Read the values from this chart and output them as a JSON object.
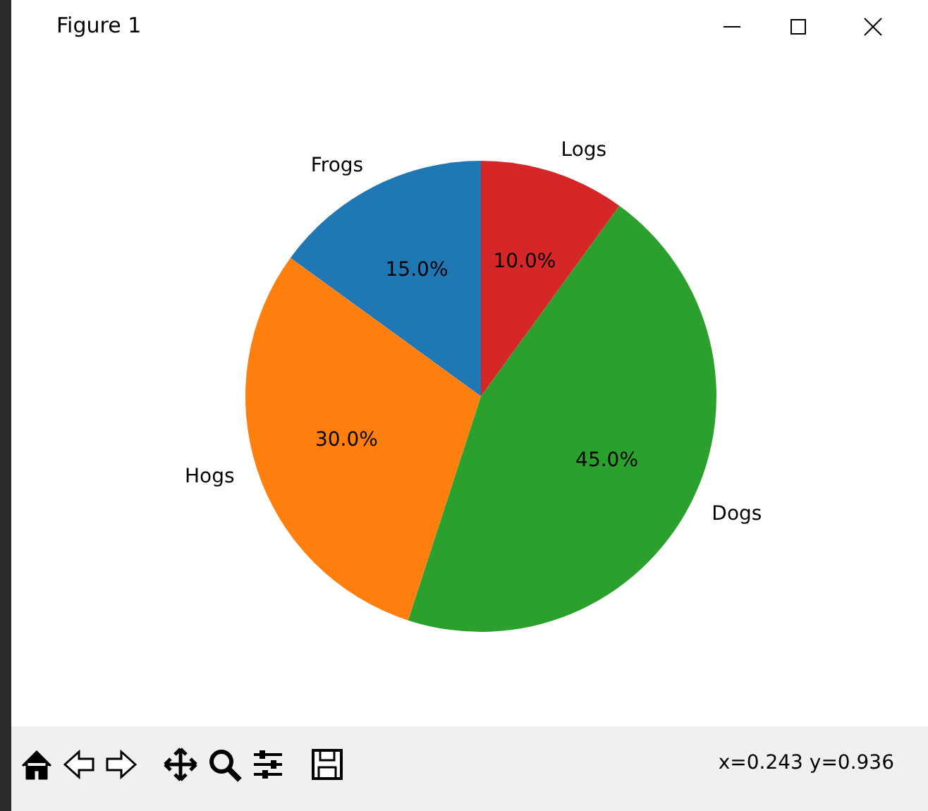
{
  "chart_data": {
    "type": "pie",
    "categories": [
      "Frogs",
      "Hogs",
      "Dogs",
      "Logs"
    ],
    "values": [
      15,
      30,
      45,
      10
    ],
    "colors": [
      "#1f77b4",
      "#ff7f0e",
      "#2ca02c",
      "#d62728"
    ],
    "value_labels": [
      "15.0%",
      "30.0%",
      "45.0%",
      "10.0%"
    ],
    "annotations": [
      "Figure 1",
      "x=0.243 y=0.936"
    ],
    "legend": false
  }
}
